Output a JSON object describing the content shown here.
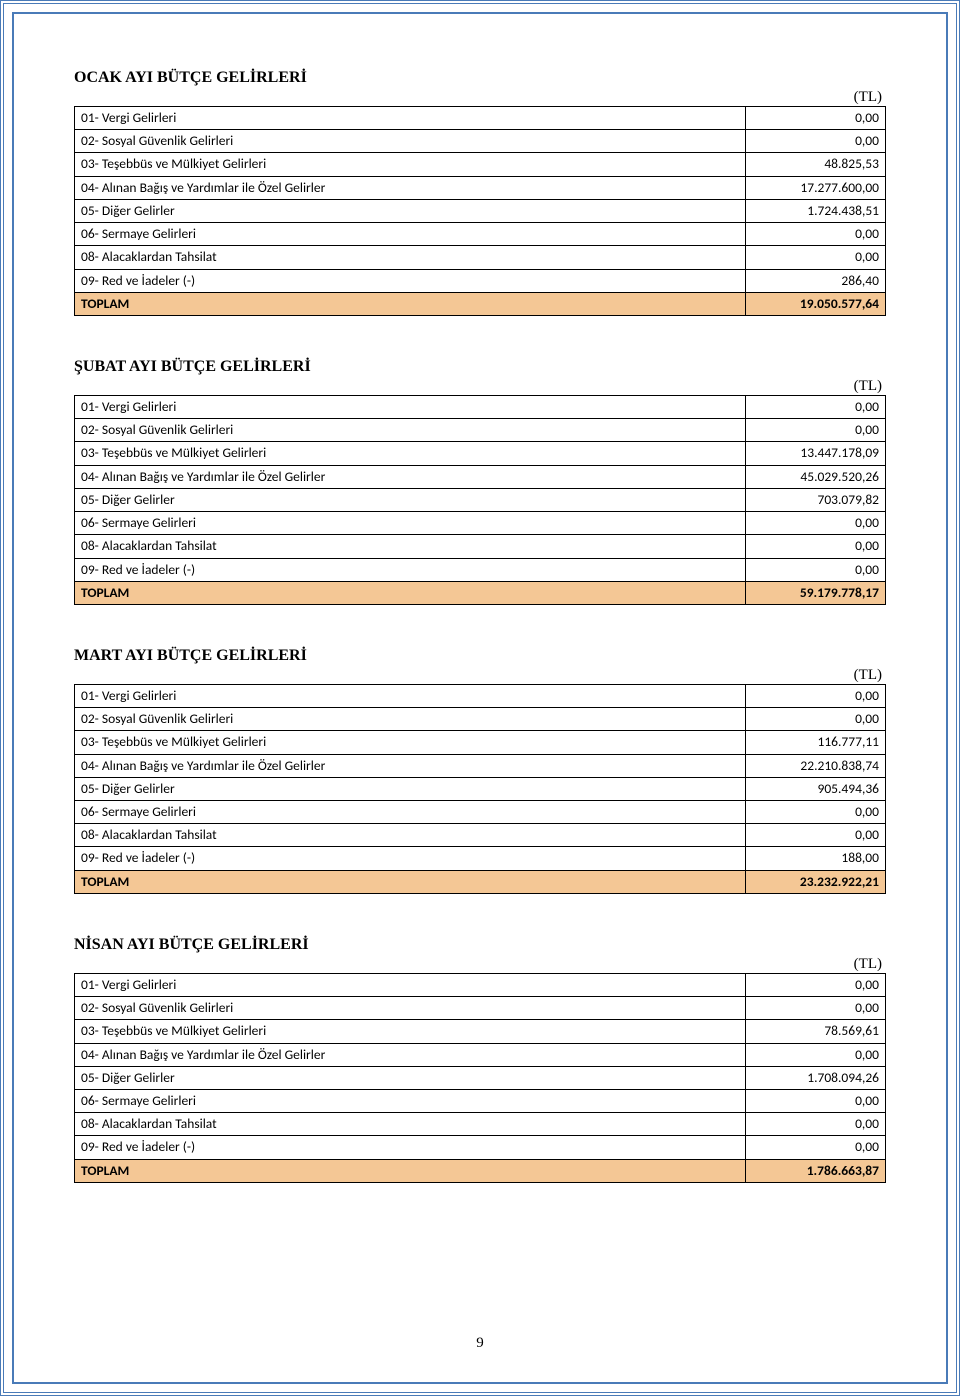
{
  "page_number": "9",
  "row_labels": {
    "r01": "01- Vergi Gelirleri",
    "r02": "02- Sosyal Güvenlik Gelirleri",
    "r03": "03- Teşebbüs ve Mülkiyet Gelirleri",
    "r04": "04- Alınan Bağış ve Yardımlar ile Özel Gelirler",
    "r05": "05- Diğer Gelirler",
    "r06": "06- Sermaye Gelirleri",
    "r08": "08- Alacaklardan Tahsilat",
    "r09": "09- Red ve İadeler (-)",
    "total": "TOPLAM"
  },
  "sections": [
    {
      "title": "OCAK AYI BÜTÇE GELİRLERİ",
      "currency": "(TL)",
      "rows": {
        "r01": "0,00",
        "r02": "0,00",
        "r03": "48.825,53",
        "r04": "17.277.600,00",
        "r05": "1.724.438,51",
        "r06": "0,00",
        "r08": "0,00",
        "r09": "286,40",
        "total": "19.050.577,64"
      }
    },
    {
      "title": "ŞUBAT AYI BÜTÇE GELİRLERİ",
      "currency": "(TL)",
      "rows": {
        "r01": "0,00",
        "r02": "0,00",
        "r03": "13.447.178,09",
        "r04": "45.029.520,26",
        "r05": "703.079,82",
        "r06": "0,00",
        "r08": "0,00",
        "r09": "0,00",
        "total": "59.179.778,17"
      }
    },
    {
      "title": "MART AYI BÜTÇE GELİRLERİ",
      "currency": "(TL)",
      "rows": {
        "r01": "0,00",
        "r02": "0,00",
        "r03": "116.777,11",
        "r04": "22.210.838,74",
        "r05": "905.494,36",
        "r06": "0,00",
        "r08": "0,00",
        "r09": "188,00",
        "total": "23.232.922,21"
      }
    },
    {
      "title": "NİSAN AYI BÜTÇE GELİRLERİ",
      "currency": "(TL)",
      "rows": {
        "r01": "0,00",
        "r02": "0,00",
        "r03": "78.569,61",
        "r04": "0,00",
        "r05": "1.708.094,26",
        "r06": "0,00",
        "r08": "0,00",
        "r09": "0,00",
        "total": "1.786.663,87"
      }
    }
  ]
}
